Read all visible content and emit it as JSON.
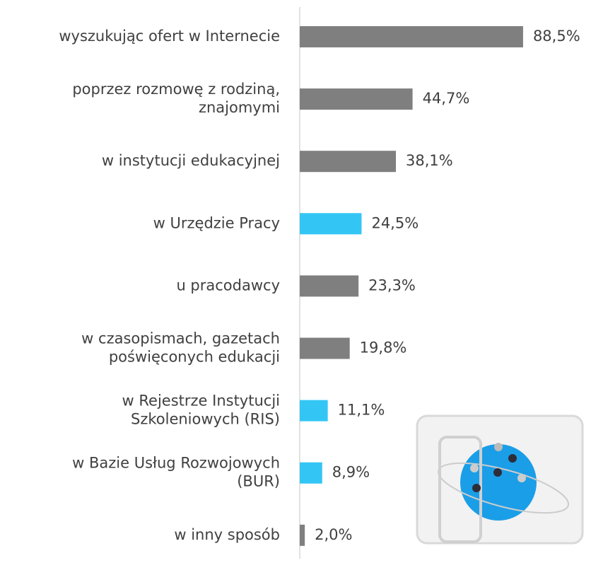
{
  "chart_data": {
    "type": "bar",
    "orientation": "horizontal",
    "categories": [
      "wyszukując ofert w Internecie",
      "poprzez rozmowę z rodziną,\nznajomymi",
      "w instytucji edukacyjnej",
      "w Urzędzie Pracy",
      "u pracodawcy",
      "w czasopismach, gazetach\npoświęconych edukacji",
      "w Rejestrze Instytucji\nSzkoleniowych (RIS)",
      "w Bazie Usług Rozwojowych\n(BUR)",
      "w inny sposób"
    ],
    "values": [
      88.5,
      44.7,
      38.1,
      24.5,
      23.3,
      19.8,
      11.1,
      8.9,
      2.0
    ],
    "value_labels": [
      "88,5%",
      "44,7%",
      "38,1%",
      "24,5%",
      "23,3%",
      "19,8%",
      "11,1%",
      "8,9%",
      "2,0%"
    ],
    "colors": [
      "#7f7f7f",
      "#7f7f7f",
      "#7f7f7f",
      "#33c6f4",
      "#7f7f7f",
      "#7f7f7f",
      "#33c6f4",
      "#33c6f4",
      "#7f7f7f"
    ],
    "xlim": [
      0,
      100
    ]
  }
}
